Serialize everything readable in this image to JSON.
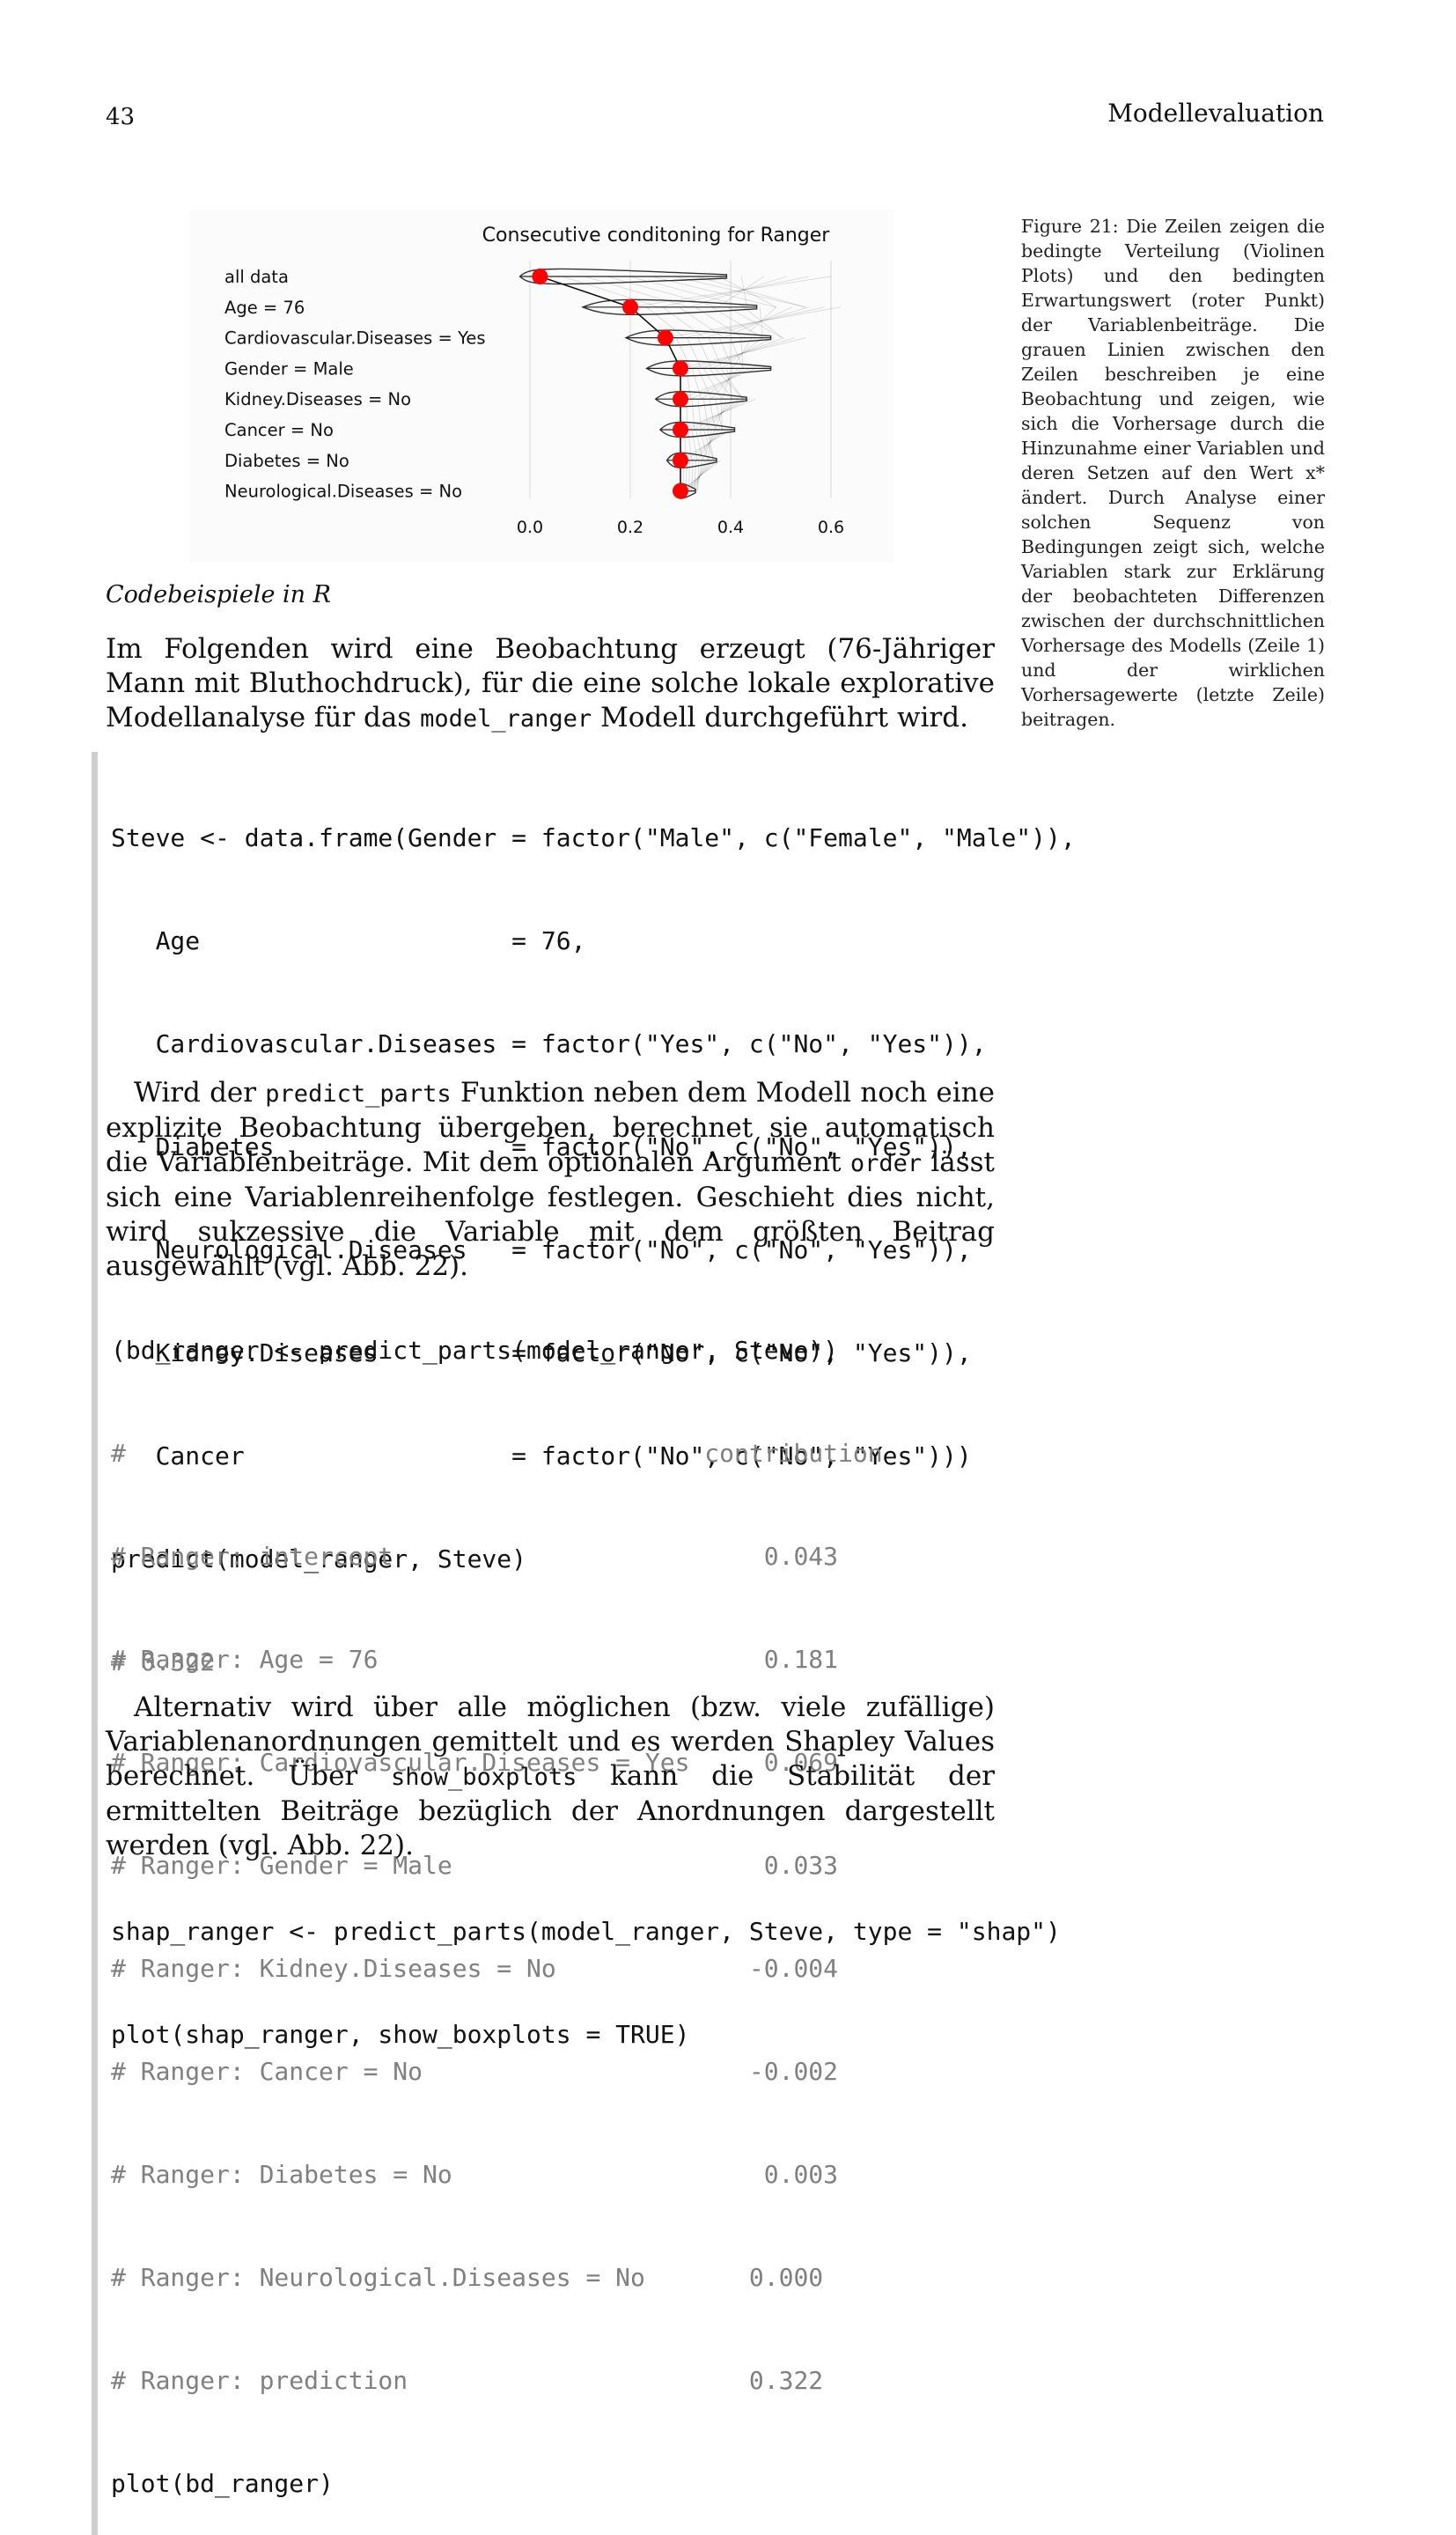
{
  "header": {
    "page_number": "43",
    "running_head": "Modellevaluation"
  },
  "figure": {
    "caption": "Figure 21: Die Zeilen zeigen die bedingte Verteilung (Violinen Plots) und den bedingten Erwartungswert (roter Punkt) der Variablenbeiträge. Die grauen Linien zwischen den Zeilen beschreiben je eine Beobachtung und zeigen, wie sich die Vorhersage durch die Hinzunahme einer Variablen und deren Setzen auf den Wert x* ändert. Durch Analyse einer solchen Sequenz von Bedingungen zeigt sich, welche Variablen stark zur Erklärung der beobachteten Differenzen zwischen der durchschnittlichen Vorhersage des Modells (Zeile 1) und der wirklichen Vorhersagewerte (letzte Zeile) beitragen."
  },
  "chart_data": {
    "type": "scatter",
    "title": "Consecutive conditoning for Ranger",
    "categories": [
      "all data",
      "Age = 76",
      "Cardiovascular.Diseases = Yes",
      "Gender = Male",
      "Kidney.Diseases = No",
      "Cancer = No",
      "Diabetes = No",
      "Neurological.Diseases = No"
    ],
    "series": [
      {
        "values": [
          0.02,
          0.2,
          0.27,
          0.3,
          0.3,
          0.3,
          0.3,
          0.3
        ]
      }
    ],
    "xlim": [
      -0.03,
      0.68
    ],
    "xticks": [
      0.0,
      0.2,
      0.4,
      0.6
    ],
    "xtick_labels": [
      "0.0",
      "0.2",
      "0.4",
      "0.6"
    ],
    "grid": true,
    "colors": {
      "point": "#ff0000",
      "violin": "#333333",
      "paths": "#000000",
      "grid": "#d9d9d9"
    }
  },
  "section": {
    "heading": "Codebeispiele in R"
  },
  "paragraph1": {
    "text_before": "Im Folgenden wird eine Beobachtung erzeugt (76-Jähriger Mann mit Bluthochdruck), für die eine solche lokale explorative Modellanalyse für das ",
    "code": "model_ranger",
    "text_after": " Modell durchgeführt wird."
  },
  "code1": {
    "lines": [
      "Steve <- data.frame(Gender = factor(\"Male\", c(\"Female\", \"Male\")),",
      "   Age                     = 76,",
      "   Cardiovascular.Diseases = factor(\"Yes\", c(\"No\", \"Yes\")),",
      "   Diabetes                = factor(\"No\", c(\"No\", \"Yes\")),",
      "   Neurological.Diseases   = factor(\"No\", c(\"No\", \"Yes\")),",
      "   Kidney.Diseases         = factor(\"No\", c(\"No\", \"Yes\")),",
      "   Cancer                  = factor(\"No\", c(\"No\", \"Yes\")))",
      "predict(model_ranger, Steve)"
    ],
    "output": [
      "# 0.322"
    ]
  },
  "paragraph2": {
    "t1": "Wird der ",
    "c1": "predict_parts",
    "t2": " Funktion neben dem Modell noch eine explizite Beobachtung übergeben, berechnet sie automatisch die Variablenbeiträge. Mit dem optionalen Argument ",
    "c2": "order",
    "t3": " lässt sich eine Variablenreihenfolge festlegen. Geschieht dies nicht, wird sukzessive die Variable mit dem größten Beitrag ausgewählt (vgl. Abb. 22)."
  },
  "code2": {
    "first": "(bd_ranger <- predict_parts(model_ranger, Steve))",
    "output": [
      "#                                       contribution",
      "# Ranger: intercept                         0.043",
      "# Ranger: Age = 76                          0.181",
      "# Ranger: Cardiovascular.Diseases = Yes     0.069",
      "# Ranger: Gender = Male                     0.033",
      "# Ranger: Kidney.Diseases = No             -0.004",
      "# Ranger: Cancer = No                      -0.002",
      "# Ranger: Diabetes = No                     0.003",
      "# Ranger: Neurological.Diseases = No       0.000",
      "# Ranger: prediction                       0.322"
    ],
    "last": "plot(bd_ranger)"
  },
  "paragraph3": {
    "t1": "Alternativ wird über alle möglichen (bzw. viele zufällige) Variablenanordnungen gemittelt und es werden Shapley Values berechnet. Über ",
    "c1": "show_boxplots",
    "t2": " kann die Stabilität der ermittelten Beiträge bezüglich der Anordnungen dargestellt werden (vgl. Abb. 22)."
  },
  "code3": {
    "lines": [
      "shap_ranger <- predict_parts(model_ranger, Steve, type = \"shap\")",
      "plot(shap_ranger, show_boxplots = TRUE)"
    ]
  }
}
